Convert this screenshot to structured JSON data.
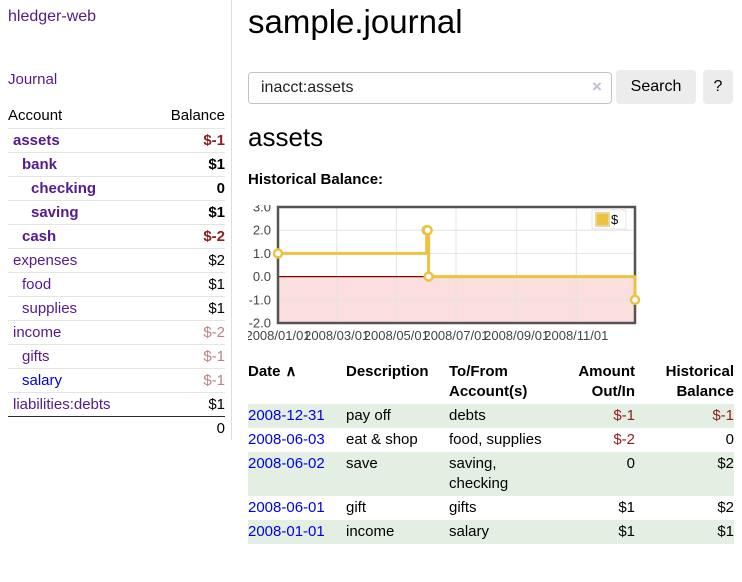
{
  "colors": {
    "purple": "#551a8b",
    "blue": "#0000e6",
    "gold": "#edc240",
    "row-green": "#e3efe3",
    "neg-strong": "#8f1d1d",
    "neg-muted": "#bd8282",
    "pink": "#fbdede",
    "zero-line": "#8b0000",
    "plot-border": "#545454",
    "grid": "#e4e4e4",
    "button-bg": "#ececec"
  },
  "brand": "hledger-web",
  "nav": {
    "journal": "Journal"
  },
  "sidebar": {
    "account_col": "Account",
    "balance_col": "Balance",
    "accounts": [
      {
        "name": "assets",
        "indent": 0,
        "balance": "$-1",
        "bold": true,
        "balance_style": "neg-strong",
        "link_color": "purple"
      },
      {
        "name": "bank",
        "indent": 1,
        "balance": "$1",
        "bold": true,
        "balance_style": "normal",
        "link_color": "purple"
      },
      {
        "name": "checking",
        "indent": 2,
        "balance": "0",
        "bold": true,
        "balance_style": "normal",
        "link_color": "purple"
      },
      {
        "name": "saving",
        "indent": 2,
        "balance": "$1",
        "bold": true,
        "balance_style": "normal",
        "link_color": "purple"
      },
      {
        "name": "cash",
        "indent": 1,
        "balance": "$-2",
        "bold": true,
        "balance_style": "neg-strong",
        "link_color": "purple"
      },
      {
        "name": "expenses",
        "indent": 0,
        "balance": "$2",
        "bold": false,
        "balance_style": "normal",
        "link_color": "purple"
      },
      {
        "name": "food",
        "indent": 1,
        "balance": "$1",
        "bold": false,
        "balance_style": "normal",
        "link_color": "purple"
      },
      {
        "name": "supplies",
        "indent": 1,
        "balance": "$1",
        "bold": false,
        "balance_style": "normal",
        "link_color": "purple"
      },
      {
        "name": "income",
        "indent": 0,
        "balance": "$-2",
        "bold": false,
        "balance_style": "neg-muted",
        "link_color": "purple"
      },
      {
        "name": "gifts",
        "indent": 1,
        "balance": "$-1",
        "bold": false,
        "balance_style": "neg-muted",
        "link_color": "purple"
      },
      {
        "name": "salary",
        "indent": 1,
        "balance": "$-1",
        "bold": false,
        "balance_style": "neg-muted",
        "link_color": "blue"
      },
      {
        "name": "liabilities:debts",
        "indent": 0,
        "balance": "$1",
        "bold": false,
        "balance_style": "normal",
        "link_color": "purple"
      }
    ],
    "total": "0"
  },
  "header": {
    "title": "sample.journal"
  },
  "search": {
    "query": "inacct:assets",
    "clear_icon": "×",
    "button": "Search",
    "help": "?"
  },
  "account_page": {
    "heading": "assets",
    "section_label": "Historical Balance:"
  },
  "chart_data": {
    "type": "line",
    "title": "Historical Balance",
    "x_domain": [
      "2008-01-01",
      "2008-12-31"
    ],
    "ylim": [
      -2,
      3
    ],
    "yticks": [
      {
        "v": 3,
        "label": "3.0"
      },
      {
        "v": 2,
        "label": "2.0"
      },
      {
        "v": 1,
        "label": "1.0"
      },
      {
        "v": 0,
        "label": "0.0"
      },
      {
        "v": -1,
        "label": "-1.0"
      },
      {
        "v": -2,
        "label": "-2.0"
      }
    ],
    "xticks": [
      "2008/01/01",
      "2008/03/01",
      "2008/05/01",
      "2008/07/01",
      "2008/09/01",
      "2008/11/01"
    ],
    "series": [
      {
        "name": "$",
        "color": "#edc240",
        "step": true,
        "points": [
          [
            "2008-01-01",
            1
          ],
          [
            "2008-06-01",
            2
          ],
          [
            "2008-06-02",
            2
          ],
          [
            "2008-06-03",
            0
          ],
          [
            "2008-12-31",
            -1
          ]
        ]
      }
    ],
    "negative_region": {
      "below": 0,
      "color": "#fbdede"
    },
    "zero_line_color": "#8b0000",
    "legend_position": "top-right",
    "grid": true
  },
  "register": {
    "sort_icon": "∧",
    "columns": [
      {
        "l1": "Date",
        "l2": ""
      },
      {
        "l1": "Description",
        "l2": ""
      },
      {
        "l1": "To/From",
        "l2": "Account(s)"
      },
      {
        "l1": "Amount",
        "l2": "Out/In"
      },
      {
        "l1": "Historical",
        "l2": "Balance"
      }
    ],
    "rows": [
      {
        "date": "2008-12-31",
        "description": "pay off",
        "accounts": "debts",
        "amount": "$-1",
        "balance": "$-1",
        "amount_neg": true,
        "balance_neg": true
      },
      {
        "date": "2008-06-03",
        "description": "eat & shop",
        "accounts": "food, supplies",
        "amount": "$-2",
        "balance": "0",
        "amount_neg": true,
        "balance_neg": false
      },
      {
        "date": "2008-06-02",
        "description": "save",
        "accounts": "saving, checking",
        "amount": "0",
        "balance": "$2",
        "amount_neg": false,
        "balance_neg": false
      },
      {
        "date": "2008-06-01",
        "description": "gift",
        "accounts": "gifts",
        "amount": "$1",
        "balance": "$2",
        "amount_neg": false,
        "balance_neg": false
      },
      {
        "date": "2008-01-01",
        "description": "income",
        "accounts": "salary",
        "amount": "$1",
        "balance": "$1",
        "amount_neg": false,
        "balance_neg": false
      }
    ]
  }
}
